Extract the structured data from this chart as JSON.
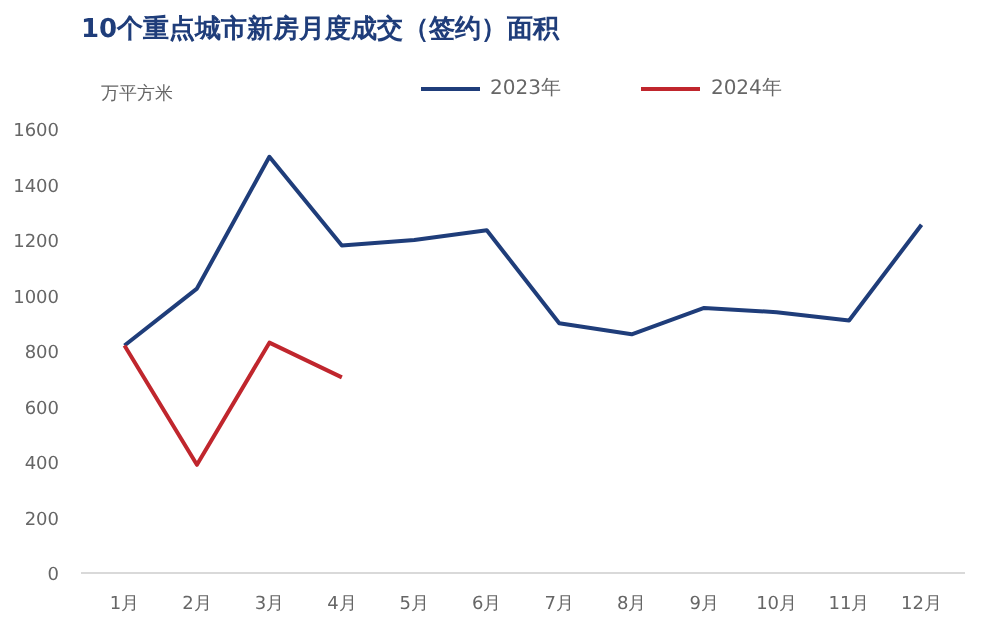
{
  "chart_data": {
    "type": "line",
    "title": "10个重点城市新房月度成交（签约）面积",
    "ylabel": "万平方米",
    "categories": [
      "1月",
      "2月",
      "3月",
      "4月",
      "5月",
      "6月",
      "7月",
      "8月",
      "9月",
      "10月",
      "11月",
      "12月"
    ],
    "series": [
      {
        "name": "2023年",
        "color": "#1f3d7a",
        "values": [
          820,
          1025,
          1500,
          1180,
          1200,
          1235,
          900,
          860,
          955,
          940,
          910,
          1255
        ]
      },
      {
        "name": "2024年",
        "color": "#c0262d",
        "values": [
          820,
          390,
          830,
          705,
          null,
          null,
          null,
          null,
          null,
          null,
          null,
          null
        ]
      }
    ],
    "ylim": [
      0,
      1600
    ],
    "yticks": [
      0,
      200,
      400,
      600,
      800,
      1000,
      1200,
      1400,
      1600
    ],
    "grid": false,
    "legend": "top",
    "marker": "none",
    "line_style": "solid"
  }
}
